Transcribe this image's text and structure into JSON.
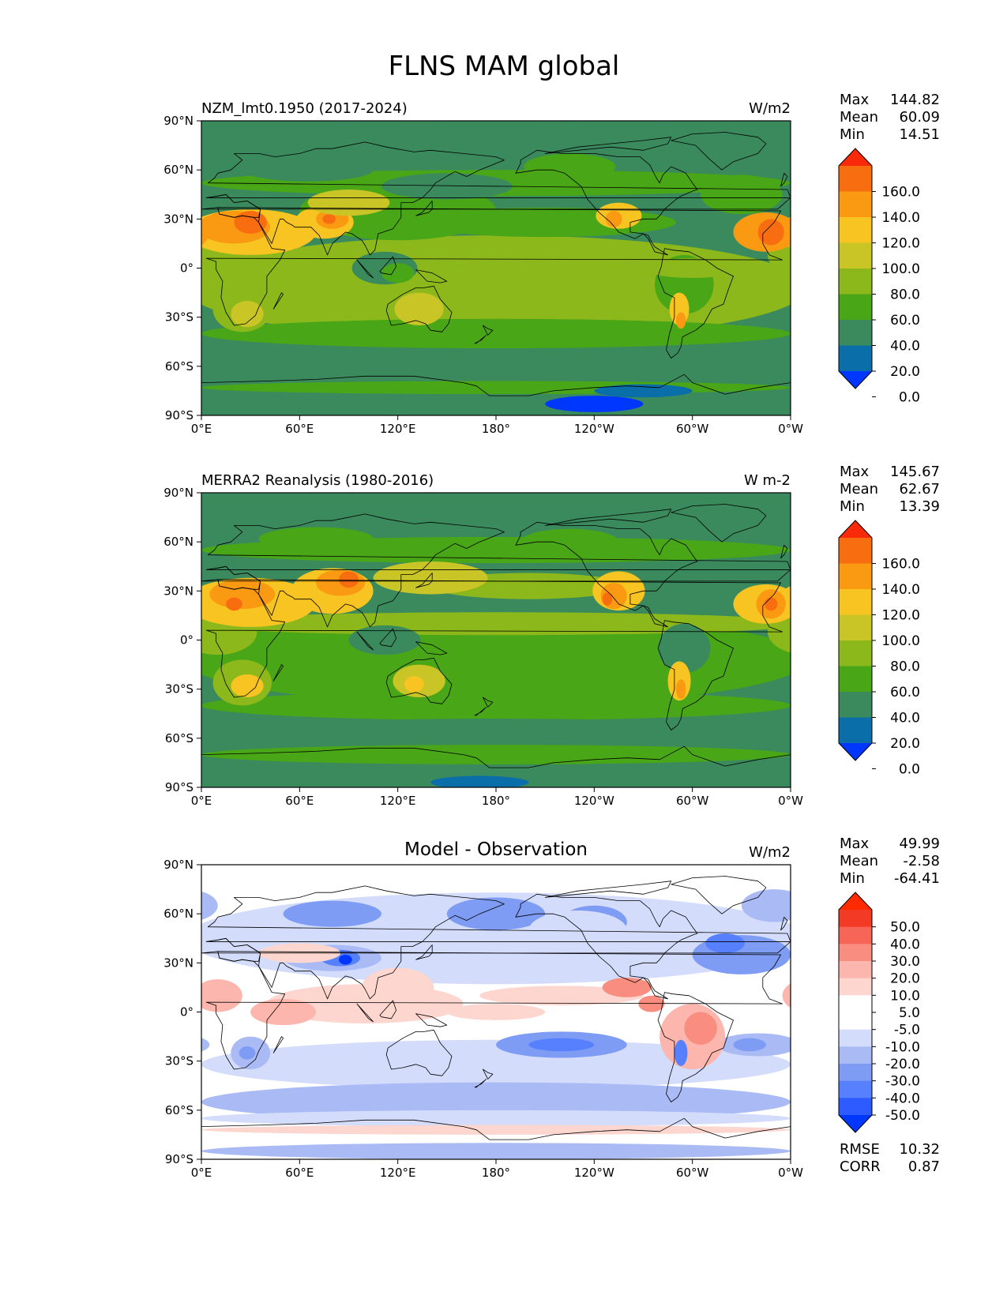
{
  "figure_title": "FLNS MAM global",
  "colors": {
    "ocean_base": "#3a8a5e",
    "land_outline": "#000000",
    "abs_levels": [
      "#0037ff",
      "#0a6ea8",
      "#3a8a5e",
      "#49a617",
      "#8cb81b",
      "#c9c526",
      "#f7c422",
      "#f99a12",
      "#f76d10",
      "#f92a0a"
    ],
    "diff_levels": [
      "#0037ff",
      "#2d5bff",
      "#5780ff",
      "#7f9cf4",
      "#a9baf4",
      "#d3dcfb",
      "#ffffff",
      "#ffffff",
      "#fdd6d0",
      "#fcb6ad",
      "#f98d7f",
      "#f66556",
      "#f23a24",
      "#ff2a00"
    ]
  },
  "chart_data": [
    {
      "type": "heatmap",
      "panel": "model",
      "title_left": "NZM_lmt0.1950 (2017-2024)",
      "title_center": "",
      "units": "W/m2",
      "stats": [
        {
          "label": "Max",
          "value": "144.82"
        },
        {
          "label": "Mean",
          "value": "60.09"
        },
        {
          "label": "Min",
          "value": "14.51"
        }
      ],
      "colorbar_ticks": [
        "160.0",
        "140.0",
        "120.0",
        "100.0",
        "80.0",
        "60.0",
        "40.0",
        "20.0",
        "0.0"
      ],
      "xticks": [
        "0°E",
        "60°E",
        "120°E",
        "180°",
        "120°W",
        "60°W",
        "0°W"
      ],
      "yticks": [
        "90°N",
        "60°N",
        "30°N",
        "0°",
        "30°S",
        "60°S",
        "90°S"
      ],
      "xlim": [
        0,
        360
      ],
      "ylim": [
        -90,
        90
      ]
    },
    {
      "type": "heatmap",
      "panel": "observation",
      "title_left": "MERRA2 Reanalysis (1980-2016)",
      "title_center": "",
      "units": "W m-2",
      "stats": [
        {
          "label": "Max",
          "value": "145.67"
        },
        {
          "label": "Mean",
          "value": "62.67"
        },
        {
          "label": "Min",
          "value": "13.39"
        }
      ],
      "colorbar_ticks": [
        "160.0",
        "140.0",
        "120.0",
        "100.0",
        "80.0",
        "60.0",
        "40.0",
        "20.0",
        "0.0"
      ],
      "xticks": [
        "0°E",
        "60°E",
        "120°E",
        "180°",
        "120°W",
        "60°W",
        "0°W"
      ],
      "yticks": [
        "90°N",
        "60°N",
        "30°N",
        "0°",
        "30°S",
        "60°S",
        "90°S"
      ],
      "xlim": [
        0,
        360
      ],
      "ylim": [
        -90,
        90
      ]
    },
    {
      "type": "heatmap",
      "panel": "difference",
      "title_left": "",
      "title_center": "Model - Observation",
      "units": "W/m2",
      "stats": [
        {
          "label": "Max",
          "value": "49.99"
        },
        {
          "label": "Mean",
          "value": "-2.58"
        },
        {
          "label": "Min",
          "value": "-64.41"
        }
      ],
      "colorbar_ticks": [
        "50.0",
        "40.0",
        "30.0",
        "20.0",
        "10.0",
        "5.0",
        "-5.0",
        "-10.0",
        "-20.0",
        "-30.0",
        "-40.0",
        "-50.0"
      ],
      "xticks": [
        "0°E",
        "60°E",
        "120°E",
        "180°",
        "120°W",
        "60°W",
        "0°W"
      ],
      "yticks": [
        "90°N",
        "60°N",
        "30°N",
        "0°",
        "30°S",
        "60°S",
        "90°S"
      ],
      "xlim": [
        0,
        360
      ],
      "ylim": [
        -90,
        90
      ],
      "metrics": [
        {
          "label": "RMSE",
          "value": "10.32"
        },
        {
          "label": "CORR",
          "value": "0.87"
        }
      ]
    }
  ]
}
